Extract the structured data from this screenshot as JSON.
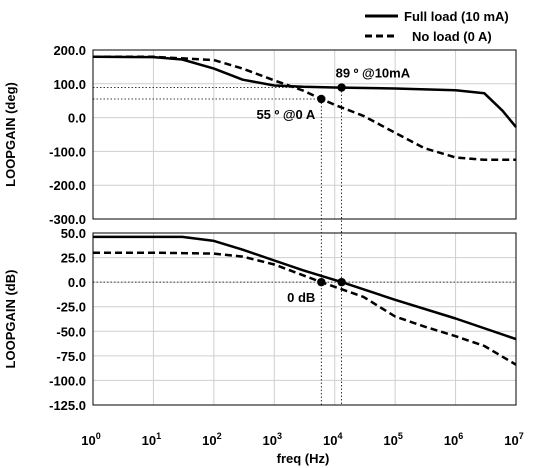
{
  "chart_data": {
    "type": "line",
    "xlabel": "freq (Hz)",
    "x_scale": "log",
    "x_ticks": [
      {
        "value": 1,
        "base": "10",
        "exp": "0"
      },
      {
        "value": 10,
        "base": "10",
        "exp": "1"
      },
      {
        "value": 100,
        "base": "10",
        "exp": "2"
      },
      {
        "value": 1000,
        "base": "10",
        "exp": "3"
      },
      {
        "value": 10000,
        "base": "10",
        "exp": "4"
      },
      {
        "value": 100000,
        "base": "10",
        "exp": "5"
      },
      {
        "value": 1000000,
        "base": "10",
        "exp": "6"
      },
      {
        "value": 10000000,
        "base": "10",
        "exp": "7"
      }
    ],
    "xlim": [
      1,
      10000000
    ],
    "legend": {
      "placement": "top-right",
      "entries": [
        {
          "label": "Full load (10 mA)",
          "style": "solid"
        },
        {
          "label": "No load (0 A)",
          "style": "dashed"
        }
      ]
    },
    "panels": [
      {
        "id": "phase",
        "ylabel": "LOOPGAIN (deg)",
        "ylim": [
          -300,
          200
        ],
        "yticks": [
          {
            "value": 200,
            "label": "200.0"
          },
          {
            "value": 100,
            "label": "100.0"
          },
          {
            "value": 0,
            "label": "0.0"
          },
          {
            "value": -100,
            "label": "-100.0"
          },
          {
            "value": -200,
            "label": "-200.0"
          },
          {
            "value": -300,
            "label": "-300.0"
          }
        ],
        "series": [
          {
            "name": "Full load (10 mA)",
            "style": "solid",
            "x": [
              1,
              10,
              30,
              100,
              300,
              1000,
              3000,
              10000,
              100000,
              1000000,
              3000000,
              6000000,
              10000000
            ],
            "y": [
              180,
              179,
              172,
              145,
              112,
              95,
              91,
              89,
              86,
              81,
              72,
              20,
              -28
            ]
          },
          {
            "name": "No load (0 A)",
            "style": "dashed",
            "x": [
              1,
              10,
              100,
              300,
              1000,
              3000,
              6000,
              10000,
              30000,
              100000,
              300000,
              1000000,
              3000000,
              10000000
            ],
            "y": [
              180,
              180,
              170,
              145,
              110,
              80,
              55,
              38,
              5,
              -45,
              -90,
              -118,
              -125,
              -125
            ]
          }
        ],
        "markers": [
          {
            "x": 13000,
            "y": 89,
            "series": "Full load (10 mA)"
          },
          {
            "x": 6000,
            "y": 55,
            "series": "No load (0 A)"
          }
        ],
        "ref_lines": [
          {
            "y": 89,
            "x_end": 13000
          },
          {
            "y": 55,
            "x_end": 6000
          }
        ],
        "annotations": [
          {
            "text": "89 º @10mA",
            "x": 13000,
            "y": 89,
            "anchor": "above-right"
          },
          {
            "text": "55 º @0 A",
            "x": 6000,
            "y": 55,
            "anchor": "below-left"
          }
        ]
      },
      {
        "id": "gain",
        "ylabel": "LOOPGAIN (dB)",
        "ylim": [
          -125,
          50
        ],
        "yticks": [
          {
            "value": 50,
            "label": "50.0"
          },
          {
            "value": 25,
            "label": "25.0"
          },
          {
            "value": 0,
            "label": "0.0"
          },
          {
            "value": -25,
            "label": "-25.0"
          },
          {
            "value": -50,
            "label": "-50.0"
          },
          {
            "value": -75,
            "label": "-75.0"
          },
          {
            "value": -100,
            "label": "-100.0"
          },
          {
            "value": -125,
            "label": "-125.0"
          }
        ],
        "series": [
          {
            "name": "Full load (10 mA)",
            "style": "solid",
            "x": [
              1,
              10,
              30,
              100,
              300,
              1000,
              3000,
              13000,
              100000,
              1000000,
              10000000
            ],
            "y": [
              46,
              46,
              46,
              42,
              33,
              22,
              12,
              0,
              -18,
              -37,
              -58
            ]
          },
          {
            "name": "No load (0 A)",
            "style": "dashed",
            "x": [
              1,
              10,
              100,
              300,
              1000,
              3000,
              6000,
              30000,
              100000,
              300000,
              1000000,
              3000000,
              10000000
            ],
            "y": [
              30,
              30,
              29,
              26,
              18,
              7,
              0,
              -15,
              -35,
              -45,
              -55,
              -65,
              -84
            ]
          }
        ],
        "markers": [
          {
            "x": 6000,
            "y": 0,
            "series": "No load (0 A)"
          },
          {
            "x": 13000,
            "y": 0,
            "series": "Full load (10 mA)"
          }
        ],
        "ref_lines": [
          {
            "y": 0,
            "x_end": 10000000
          }
        ],
        "annotations": [
          {
            "text": "0 dB",
            "x": 6000,
            "y": 0,
            "anchor": "below-left"
          }
        ]
      }
    ],
    "crossover_lines": [
      {
        "x": 6000,
        "from_panel": "phase",
        "from_y": 55,
        "to_panel": "gain",
        "to_y": 0
      },
      {
        "x": 13000,
        "from_panel": "phase",
        "from_y": 89,
        "to_panel": "gain",
        "to_y": 0
      }
    ]
  }
}
